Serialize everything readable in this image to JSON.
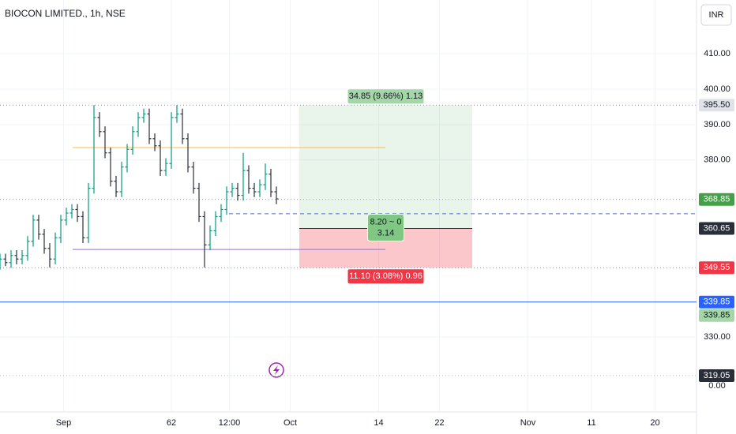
{
  "chart_data": {
    "type": "ohlc",
    "title": "BIOCON LIMITED., 1h, NSE",
    "currency": "INR",
    "indicator_zero": "0.00",
    "up_color": "#089981",
    "down_color": "#2a2e39",
    "xlim": [
      0,
      252
    ],
    "ylim": [
      308.8,
      425.2
    ],
    "xticks": [
      {
        "value": 23,
        "label": "Sep"
      },
      62,
      {
        "value": 83,
        "label": "12:00"
      },
      {
        "value": 105,
        "label": "Oct"
      },
      {
        "value": 137,
        "label": "14"
      },
      {
        "value": 159,
        "label": "22"
      },
      {
        "value": 191,
        "label": "Nov"
      },
      {
        "value": 214,
        "label": "11"
      },
      {
        "value": 237,
        "label": "20"
      }
    ],
    "yticks": [
      {
        "value": 410,
        "label": "410.00"
      },
      {
        "value": 400,
        "label": "400.00"
      },
      {
        "value": 390,
        "label": "390.00"
      },
      {
        "value": 380,
        "label": "380.00"
      },
      {
        "value": 330,
        "label": "330.00"
      }
    ],
    "grid": true,
    "x": [
      0,
      2,
      4,
      6,
      8,
      10,
      12,
      14,
      16,
      18,
      20,
      22,
      24,
      26,
      28,
      30,
      32,
      34,
      36,
      38,
      40,
      42,
      44,
      46,
      48,
      50,
      52,
      54,
      56,
      58,
      60,
      62,
      64,
      66,
      68,
      70,
      72,
      74,
      76,
      78,
      80,
      82,
      84,
      86,
      88,
      90,
      92,
      94,
      96,
      98,
      100
    ],
    "open": [
      350.5,
      352,
      351,
      353,
      352,
      353,
      357,
      363,
      359,
      355,
      352,
      358,
      363,
      365,
      366,
      364,
      358,
      372,
      392,
      388,
      382,
      374,
      371,
      378,
      383,
      388,
      392,
      393,
      386,
      384,
      377,
      379,
      392,
      393,
      386,
      378,
      372,
      364,
      356,
      360,
      364,
      366,
      371,
      372,
      370,
      377,
      372,
      371,
      373,
      376,
      371
    ],
    "high": [
      353.5,
      353.5,
      354.5,
      354.5,
      354.5,
      358.5,
      364.5,
      364.5,
      360.5,
      356.5,
      359.5,
      364.5,
      366.5,
      367.5,
      367.5,
      365.5,
      373.5,
      395.5,
      393.5,
      389.5,
      383.5,
      375.5,
      379.5,
      384.5,
      389.5,
      393.5,
      394.5,
      394.5,
      387.5,
      385.5,
      380.5,
      393.5,
      395.5,
      394.5,
      387.5,
      379.5,
      373.5,
      365.5,
      361.5,
      365.5,
      367.5,
      372.5,
      373.5,
      373.5,
      382,
      378.5,
      373.5,
      374.5,
      379,
      377.5,
      372.5
    ],
    "low": [
      349,
      350,
      349.5,
      350.5,
      350.5,
      351.5,
      355.5,
      357.5,
      353.5,
      349.6,
      350.5,
      356.5,
      361.5,
      363.5,
      362.5,
      356.5,
      356.5,
      370.5,
      386.5,
      380.5,
      372.5,
      369.5,
      369.5,
      376.5,
      381.5,
      386.5,
      390.5,
      384.5,
      382.5,
      375.5,
      375.5,
      377.5,
      390.5,
      384.5,
      376.5,
      370.5,
      362.5,
      349.6,
      354.5,
      358.5,
      362.5,
      364.5,
      369.5,
      368.5,
      368.5,
      370.5,
      369.5,
      369.5,
      371.5,
      369.5,
      367.5
    ],
    "close": [
      352,
      351,
      353,
      352,
      353,
      357,
      363,
      359,
      355,
      352,
      358,
      363,
      365,
      366,
      364,
      358,
      372,
      392,
      388,
      382,
      374,
      371,
      378,
      383,
      388,
      392,
      393,
      386,
      384,
      377,
      379,
      392,
      393,
      386,
      378,
      372,
      364,
      356,
      360,
      364,
      366,
      371,
      372,
      370,
      377,
      372,
      371,
      373,
      376,
      371,
      369
    ],
    "levels": [
      {
        "value": 395.5,
        "label": "395.50",
        "color": "#9598a1",
        "label_bg": "#dfe2e8",
        "label_color": "#131722",
        "style": "dotted"
      },
      {
        "value": 368.85,
        "label": "368.85",
        "color": "#9598a1",
        "label_bg": "#43a047",
        "label_color": "#ffffff",
        "style": "dotted"
      },
      {
        "value": 349.55,
        "label": "349.55",
        "color": "#9598a1",
        "label_bg": "#f23645",
        "label_color": "#ffffff",
        "style": "dotted"
      },
      {
        "value": 339.85,
        "label": "339.85",
        "color": "#2962ff",
        "label_bg": "#2962ff",
        "label_color": "#ffffff",
        "style": "solid"
      },
      {
        "value": 319.05,
        "label": "319.05",
        "color": "#b2b5be",
        "label_bg": "#2a2e39",
        "label_color": "#ffffff",
        "style": "dotted"
      }
    ],
    "extra_label": {
      "value": 339.85,
      "label": "339.85",
      "label_bg": "#a5d6a7",
      "label_color": "#131722"
    },
    "drawings": [
      {
        "value": 383.5,
        "color": "#ffb74d",
        "style": "solid"
      },
      {
        "value": 354.7,
        "color": "#9575cd",
        "style": "solid"
      },
      {
        "value": 364.8,
        "color": "#5c6bc0",
        "style": "dashed"
      }
    ],
    "position": {
      "entry": 360.65,
      "entry_label": "360.65",
      "target": 395.5,
      "stop": 349.55,
      "target_text": "34.85 (9.66%) 1.13",
      "mid_text_1": "8.20 ~ 0",
      "mid_text_2": "3.14",
      "stop_text": "11.10 (3.08%) 0.96"
    }
  }
}
